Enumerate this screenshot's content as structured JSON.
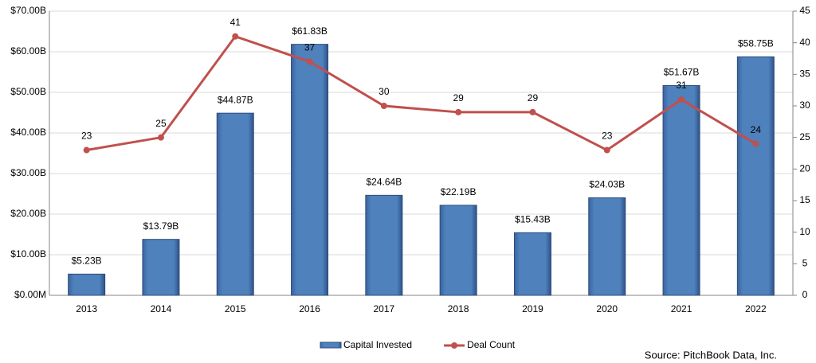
{
  "chart_data": {
    "type": "combo",
    "categories": [
      "2013",
      "2014",
      "2015",
      "2016",
      "2017",
      "2018",
      "2019",
      "2020",
      "2021",
      "2022"
    ],
    "series": [
      {
        "name": "Capital Invested",
        "type": "bar",
        "color": "#4f81bd",
        "values": [
          5.23,
          13.79,
          44.87,
          61.83,
          24.64,
          22.19,
          15.43,
          24.03,
          51.67,
          58.75
        ],
        "value_labels": [
          "$5.23B",
          "$13.79B",
          "$44.87B",
          "$61.83B",
          "$24.64B",
          "$22.19B",
          "$15.43B",
          "$24.03B",
          "$51.67B",
          "$58.75B"
        ]
      },
      {
        "name": "Deal Count",
        "type": "line",
        "axis": "y2",
        "color": "#c0504d",
        "values": [
          23,
          25,
          41,
          37,
          30,
          29,
          29,
          23,
          31,
          24
        ]
      }
    ],
    "ylim": [
      0,
      70
    ],
    "yticks": [
      {
        "value": 0,
        "label": "$0.00M"
      },
      {
        "value": 10,
        "label": "$10.00B"
      },
      {
        "value": 20,
        "label": "$20.00B"
      },
      {
        "value": 30,
        "label": "$30.00B"
      },
      {
        "value": 40,
        "label": "$40.00B"
      },
      {
        "value": 50,
        "label": "$50.00B"
      },
      {
        "value": 60,
        "label": "$60.00B"
      },
      {
        "value": 70,
        "label": "$70.00B"
      }
    ],
    "y2lim": [
      0,
      45
    ],
    "y2ticks": [
      0,
      5,
      10,
      15,
      20,
      25,
      30,
      35,
      40,
      45
    ],
    "grid": true,
    "legend": "bottom",
    "source": "Source: PitchBook Data, Inc."
  }
}
